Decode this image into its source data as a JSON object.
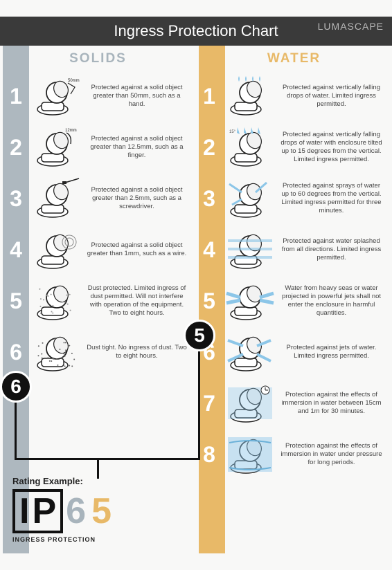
{
  "brand": "LUMASCAPE",
  "title": "Ingress Protection Chart",
  "colors": {
    "solids_stripe": "#aeb8bf",
    "water_stripe": "#e8b968",
    "title_bg": "#3a3a3a",
    "badge_bg": "#111111"
  },
  "solids": {
    "header": "SOLIDS",
    "items": [
      {
        "num": "1",
        "desc": "Protected against a solid object greater than 50mm, such as a hand."
      },
      {
        "num": "2",
        "desc": "Protected against a solid object greater than 12.5mm, such as a finger."
      },
      {
        "num": "3",
        "desc": "Protected against a solid object greater than 2.5mm, such as a screwdriver."
      },
      {
        "num": "4",
        "desc": "Protected against a solid object greater than 1mm, such as a wire."
      },
      {
        "num": "5",
        "desc": "Dust protected. Limited ingress of dust permitted. Will not interfere with operation of the equipment. Two to eight hours."
      },
      {
        "num": "6",
        "desc": "Dust tight. No ingress of dust. Two to eight hours."
      }
    ]
  },
  "water": {
    "header": "WATER",
    "items": [
      {
        "num": "1",
        "desc": "Protected against vertically falling drops of water. Limited ingress permitted."
      },
      {
        "num": "2",
        "desc": "Protected against vertically falling drops of water with enclosure tilted up to 15 degrees from the vertical. Limited ingress permitted."
      },
      {
        "num": "3",
        "desc": "Protected against sprays of water up to 60 degrees from the vertical. Limited ingress permitted for three minutes."
      },
      {
        "num": "4",
        "desc": "Protected against water splashed from all directions. Limited ingress permitted."
      },
      {
        "num": "5",
        "desc": "Water from heavy seas or water projected in powerful jets shall not enter the enclosure in harmful quantities."
      },
      {
        "num": "6",
        "desc": "Protected against jets of water. Limited ingress permitted."
      },
      {
        "num": "7",
        "desc": "Protection against the effects of immersion in water between 15cm and 1m for 30 minutes."
      },
      {
        "num": "8",
        "desc": "Protection against the effects of immersion in water under pressure for long periods."
      }
    ]
  },
  "highlight": {
    "solids_num": "6",
    "water_num": "5"
  },
  "rating": {
    "title": "Rating Example:",
    "letters": "IP",
    "digit1": "6",
    "digit2": "5",
    "sub": "INGRESS PROTECTION"
  }
}
